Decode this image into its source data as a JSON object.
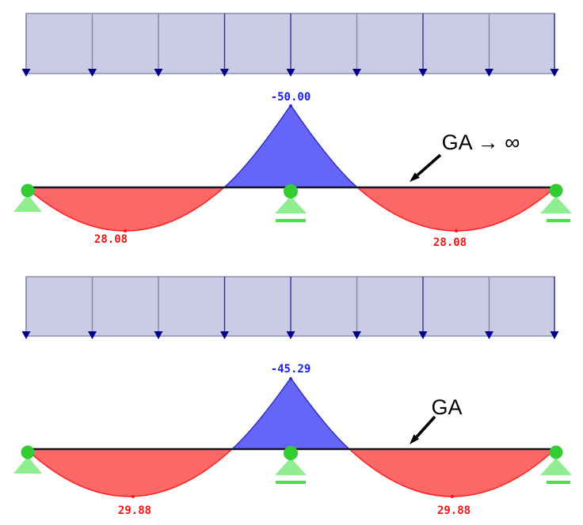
{
  "diagrams": [
    {
      "id": "shear-rigid",
      "annotation_label": "GA → ∞",
      "center_support_moment": "-50.00",
      "left_span_moment": "28.08",
      "right_span_moment": "28.08"
    },
    {
      "id": "shear-flexible",
      "annotation_label": "GA",
      "center_support_moment": "-45.29",
      "left_span_moment": "29.88",
      "right_span_moment": "29.88"
    }
  ],
  "chart_data": [
    {
      "type": "area",
      "title": "Bending moment diagram, two-span continuous beam, uniform load, shear-rigid case",
      "annotation": "GA → ∞",
      "load": "uniform distributed load over both spans (9 arrows)",
      "supports": [
        "pin-left",
        "roller-center",
        "roller-right"
      ],
      "center_support_moment": -50.0,
      "span_max_moments": [
        28.08,
        28.08
      ],
      "sign_convention": "negative (blue) plotted above beam axis, positive (red) below",
      "legend_position": "none",
      "grid": false
    },
    {
      "type": "area",
      "title": "Bending moment diagram, two-span continuous beam, uniform load, finite shear stiffness case",
      "annotation": "GA",
      "load": "uniform distributed load over both spans (9 arrows)",
      "supports": [
        "pin-left",
        "roller-center",
        "roller-right"
      ],
      "center_support_moment": -45.29,
      "span_max_moments": [
        29.88,
        29.88
      ],
      "sign_convention": "negative (blue) plotted above beam axis, positive (red) below",
      "legend_position": "none",
      "grid": false
    }
  ],
  "colors": {
    "load_fill": "#cbcbe6",
    "load_border": "#8e8eb4",
    "load_arrow_stem": "#8585ae",
    "load_arrow_stem_dark": "#32329a",
    "load_arrow_head": "#00008b",
    "beam_line": "#15151f",
    "moment_negative_fill": "#6565f8",
    "moment_negative_edge": "#2a2ac8",
    "moment_positive_fill": "#fc6868",
    "moment_positive_edge": "#ff1a1a",
    "support_node": "#33cc33",
    "support_triangle": "#90ee90",
    "roller_line": "#4ddd4d",
    "label_negative": "#1a1aff",
    "label_positive": "#f01414",
    "annotation_color": "#000000"
  }
}
